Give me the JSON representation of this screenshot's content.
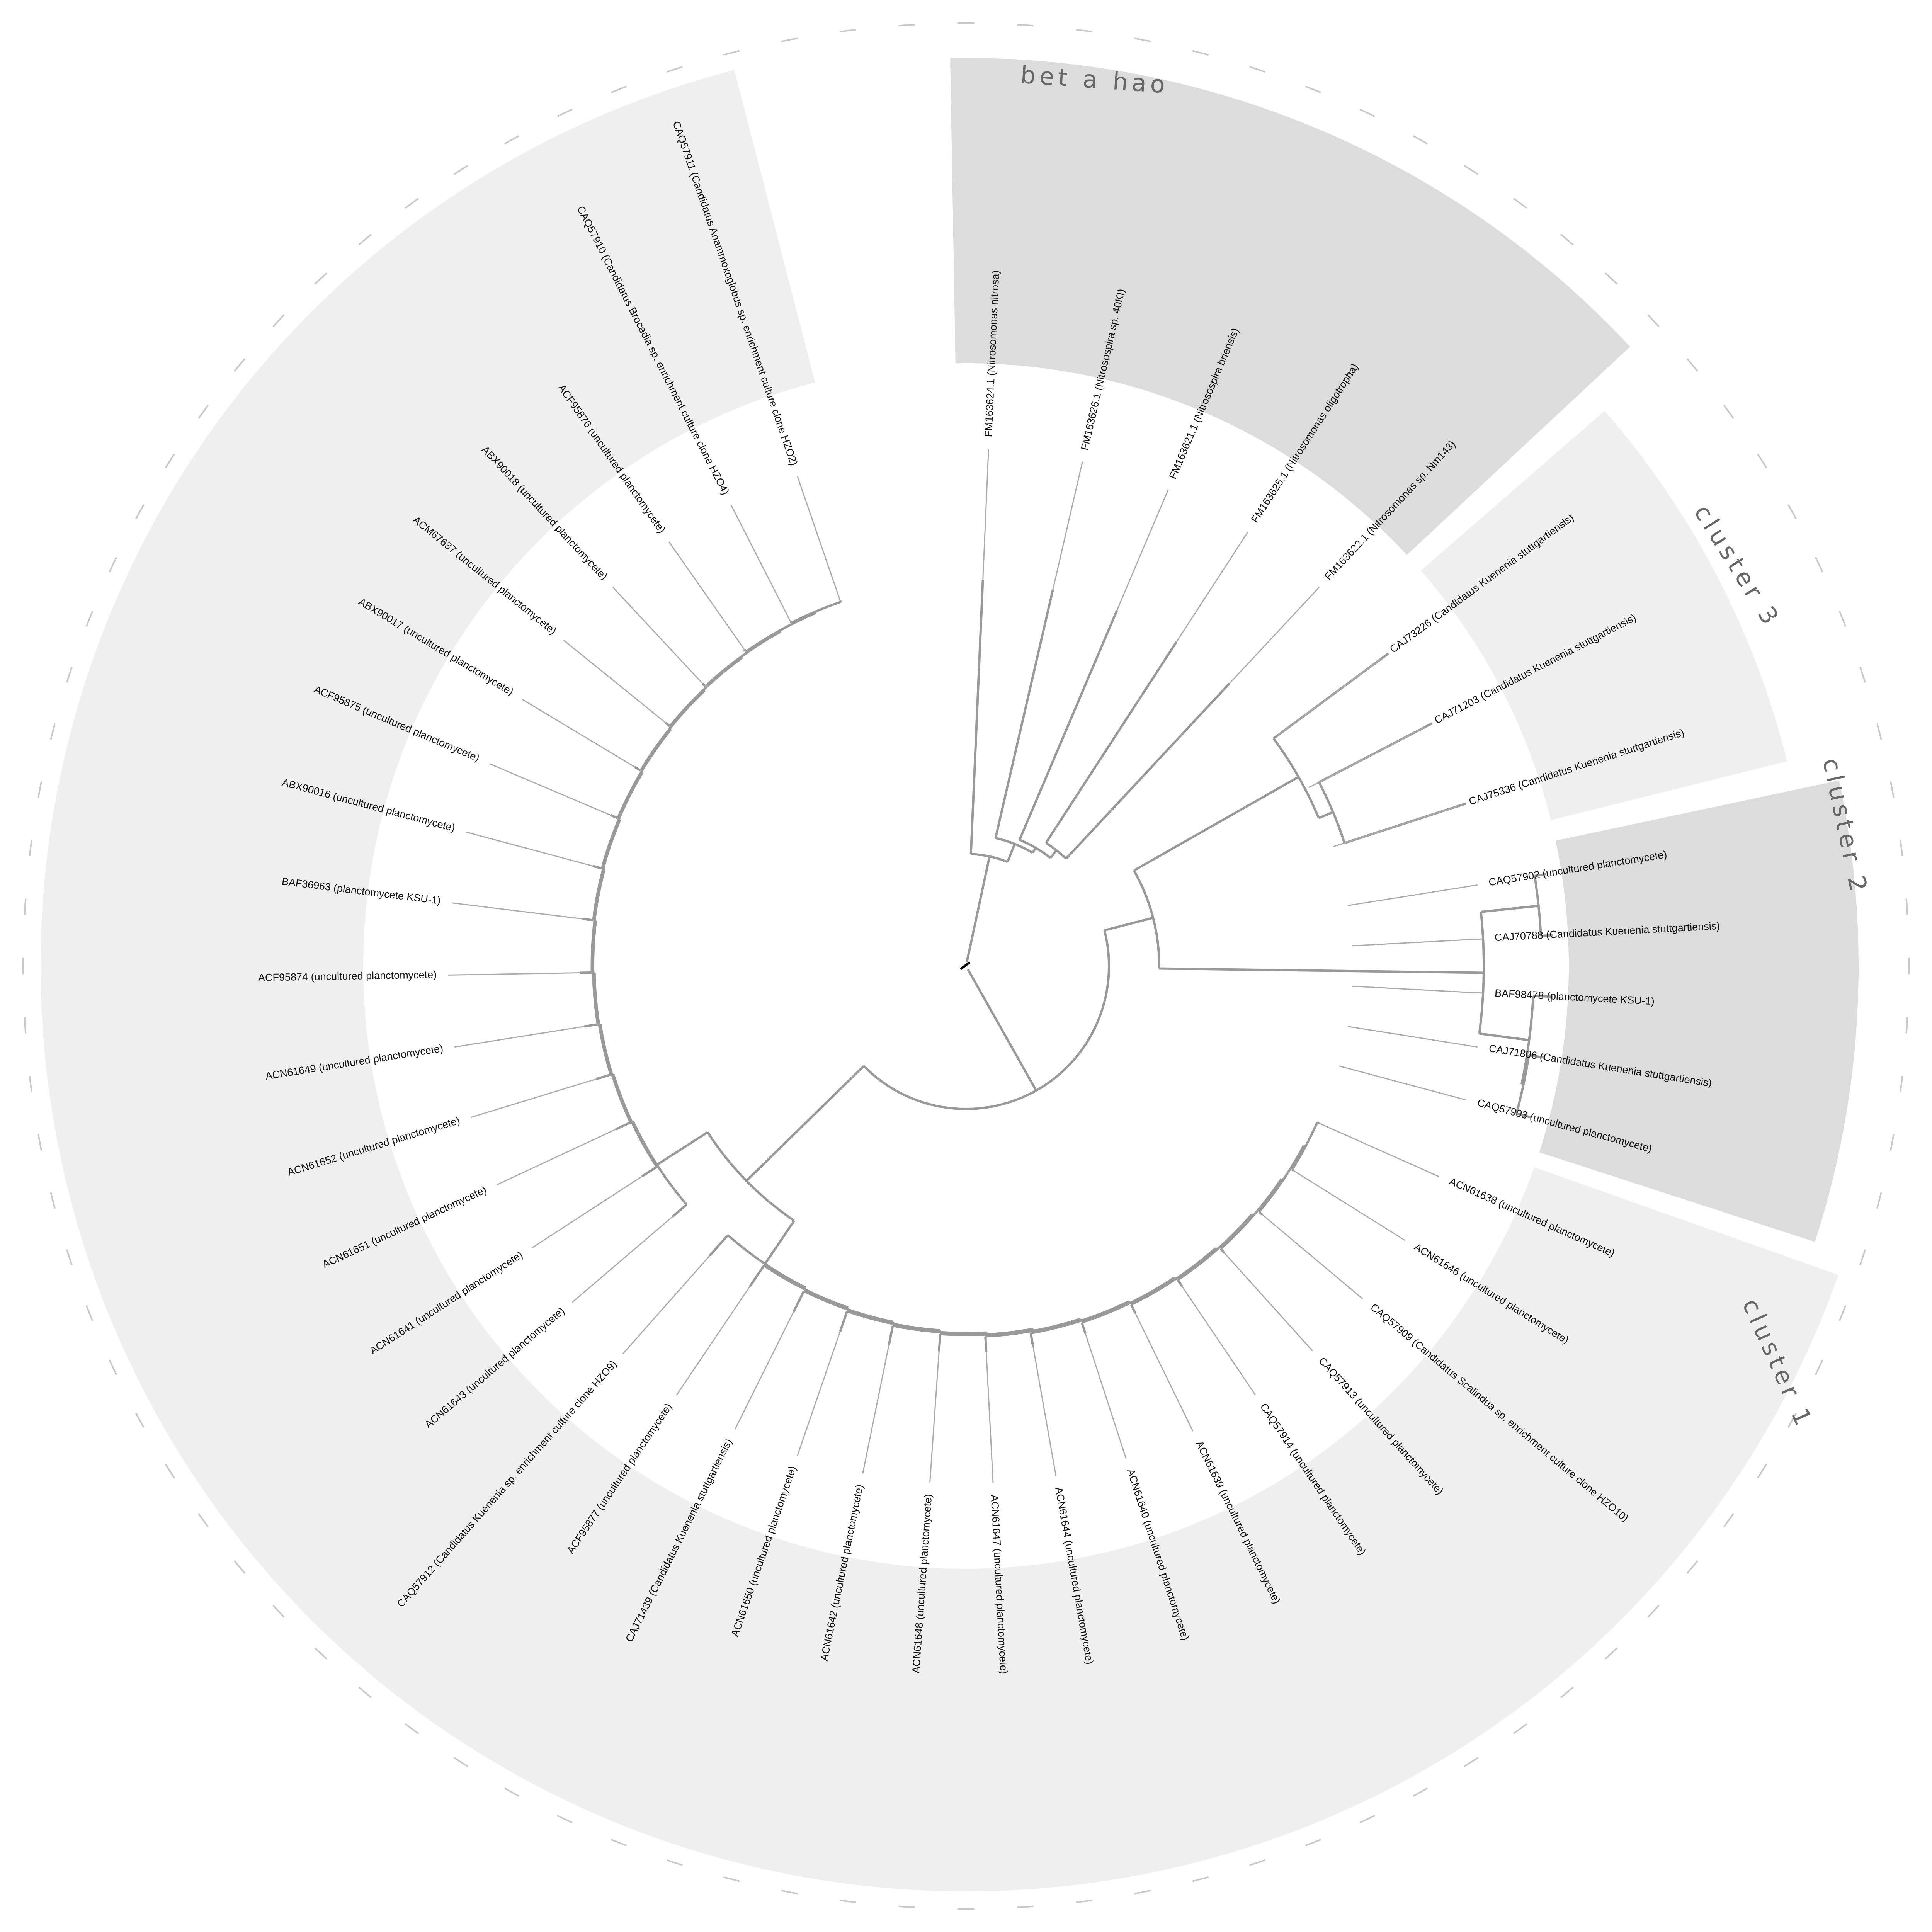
{
  "colors": {
    "background": "#ffffff",
    "clade_light": "#efefef",
    "clade_dark": "#dcdcdc",
    "branch": "#999999",
    "leader": "#aaaaaa",
    "label": "#111111",
    "clade_title": "#666666",
    "tick": "#c8c8c8"
  },
  "clades": [
    {
      "id": "cluster1",
      "title": "cluster 1",
      "shade": "light"
    },
    {
      "id": "cluster2",
      "title": "cluster 2",
      "shade": "dark"
    },
    {
      "id": "cluster3",
      "title": "cluster 3",
      "shade": "light"
    },
    {
      "id": "beta",
      "title": "bet a  hao",
      "shade": "dark"
    }
  ],
  "leaves": [
    {
      "label": "FM163624.1 (Nitrosomonas nitrosa)",
      "angle": -87.5,
      "clade": "beta"
    },
    {
      "label": "FM163626.1 (Nitrosospira sp. 40KI)",
      "angle": -77.0,
      "clade": "beta"
    },
    {
      "label": "FM163621.1 (Nitrosospira briensis)",
      "angle": -67.0,
      "clade": "beta"
    },
    {
      "label": "FM163625.1 (Nitrosomonas oligotropha)",
      "angle": -57.0,
      "clade": "beta"
    },
    {
      "label": "FM163622.1 (Nitrosomonas sp. Nm143)",
      "angle": -47.0,
      "clade": "beta"
    },
    {
      "label": "CAJ73226 (Candidatus Kuenenia stuttgartiensis)",
      "angle": -36.5,
      "clade": "cluster3"
    },
    {
      "label": "CAJ71203 (Candidatus Kuenenia stuttgartiensis)",
      "angle": -27.5,
      "clade": "cluster3"
    },
    {
      "label": "CAJ75336 (Candidatus Kuenenia stuttgartiensis)",
      "angle": -18.0,
      "clade": "cluster3"
    },
    {
      "label": "CAQ57902 (uncultured planctomycete)",
      "angle": -9.0,
      "clade": "cluster2"
    },
    {
      "label": "CAJ70788 (Candidatus Kuenenia stuttgartiensis)",
      "angle": -3.0,
      "clade": "cluster2"
    },
    {
      "label": "BAF98478 (planctomycete KSU-1)",
      "angle": 3.0,
      "clade": "cluster2"
    },
    {
      "label": "CAJ71806 (Candidatus Kuenenia stuttgartiensis)",
      "angle": 9.0,
      "clade": "cluster2"
    },
    {
      "label": "CAQ57903 (uncultured planctomycete)",
      "angle": 15.0,
      "clade": "cluster2"
    },
    {
      "label": "ACN61638 (uncultured planctomycete)",
      "angle": 24.0,
      "clade": "cluster1"
    },
    {
      "label": "ACN61646 (uncultured planctomycete)",
      "angle": 32.0,
      "clade": "cluster1"
    },
    {
      "label": "CAQ57909 (Candidatus Scalindua sp. enrichment culture clone HZO10)",
      "angle": 40.0,
      "clade": "cluster1"
    },
    {
      "label": "CAQ57913 (uncultured planctomycete)",
      "angle": 48.0,
      "clade": "cluster1"
    },
    {
      "label": "CAQ57914 (uncultured planctomycete)",
      "angle": 56.0,
      "clade": "cluster1"
    },
    {
      "label": "ACN61639 (uncultured planctomycete)",
      "angle": 64.0,
      "clade": "cluster1"
    },
    {
      "label": "ACN61640 (uncultured planctomycete)",
      "angle": 72.0,
      "clade": "cluster1"
    },
    {
      "label": "ACN61644 (uncultured planctomycete)",
      "angle": 80.0,
      "clade": "cluster1"
    },
    {
      "label": "ACN61647 (uncultured planctomycete)",
      "angle": 87.0,
      "clade": "cluster1"
    },
    {
      "label": "ACN61648 (uncultured planctomycete)",
      "angle": 94.0,
      "clade": "cluster1"
    },
    {
      "label": "ACN61642 (uncultured planctomycete)",
      "angle": 101.5,
      "clade": "cluster1"
    },
    {
      "label": "ACN61650 (uncultured planctomycete)",
      "angle": 109.0,
      "clade": "cluster1"
    },
    {
      "label": "CAJ71439 (Candidatus Kuenenia stuttgartiensis)",
      "angle": 116.5,
      "clade": "cluster1"
    },
    {
      "label": "ACF95877 (uncultured planctomycete)",
      "angle": 124.0,
      "clade": "cluster1"
    },
    {
      "label": "CAQ57912 (Candidatus Kuenenia sp. enrichment culture clone HZO9)",
      "angle": 131.5,
      "clade": "cluster1"
    },
    {
      "label": "ACN61643 (uncultured planctomycete)",
      "angle": 139.5,
      "clade": "cluster1"
    },
    {
      "label": "ACN61641 (uncultured planctomycete)",
      "angle": 147.0,
      "clade": "cluster1"
    },
    {
      "label": "ACN61651 (uncultured planctomycete)",
      "angle": 155.0,
      "clade": "cluster1"
    },
    {
      "label": "ACN61652 (uncultured planctomycete)",
      "angle": 163.0,
      "clade": "cluster1"
    },
    {
      "label": "ACN61649 (uncultured planctomycete)",
      "angle": 171.0,
      "clade": "cluster1"
    },
    {
      "label": "ACF95874 (uncultured planctomycete)",
      "angle": 179.0,
      "clade": "cluster1"
    },
    {
      "label": "BAF36963 (planctomycete KSU-1)",
      "angle": 187.0,
      "clade": "cluster1"
    },
    {
      "label": "ABX90016 (uncultured planctomycete)",
      "angle": 195.0,
      "clade": "cluster1"
    },
    {
      "label": "ACF95875 (uncultured planctomycete)",
      "angle": 203.0,
      "clade": "cluster1"
    },
    {
      "label": "ABX90017 (uncultured planctomycete)",
      "angle": 211.0,
      "clade": "cluster1"
    },
    {
      "label": "ACM67637 (uncultured planctomycete)",
      "angle": 219.0,
      "clade": "cluster1"
    },
    {
      "label": "ABX90018 (uncultured planctomycete)",
      "angle": 227.0,
      "clade": "cluster1"
    },
    {
      "label": "ACF95876 (uncultured planctomycete)",
      "angle": 235.0,
      "clade": "cluster1"
    },
    {
      "label": "CAQ57910 (Candidatus Brocadia sp. enrichment culture clone HZO4)",
      "angle": 243.0,
      "clade": "cluster1"
    },
    {
      "label": "CAQ57911 (Candidatus Anammoxoglobus sp. enrichment culture clone HZO2)",
      "angle": 251.0,
      "clade": "cluster1"
    }
  ]
}
